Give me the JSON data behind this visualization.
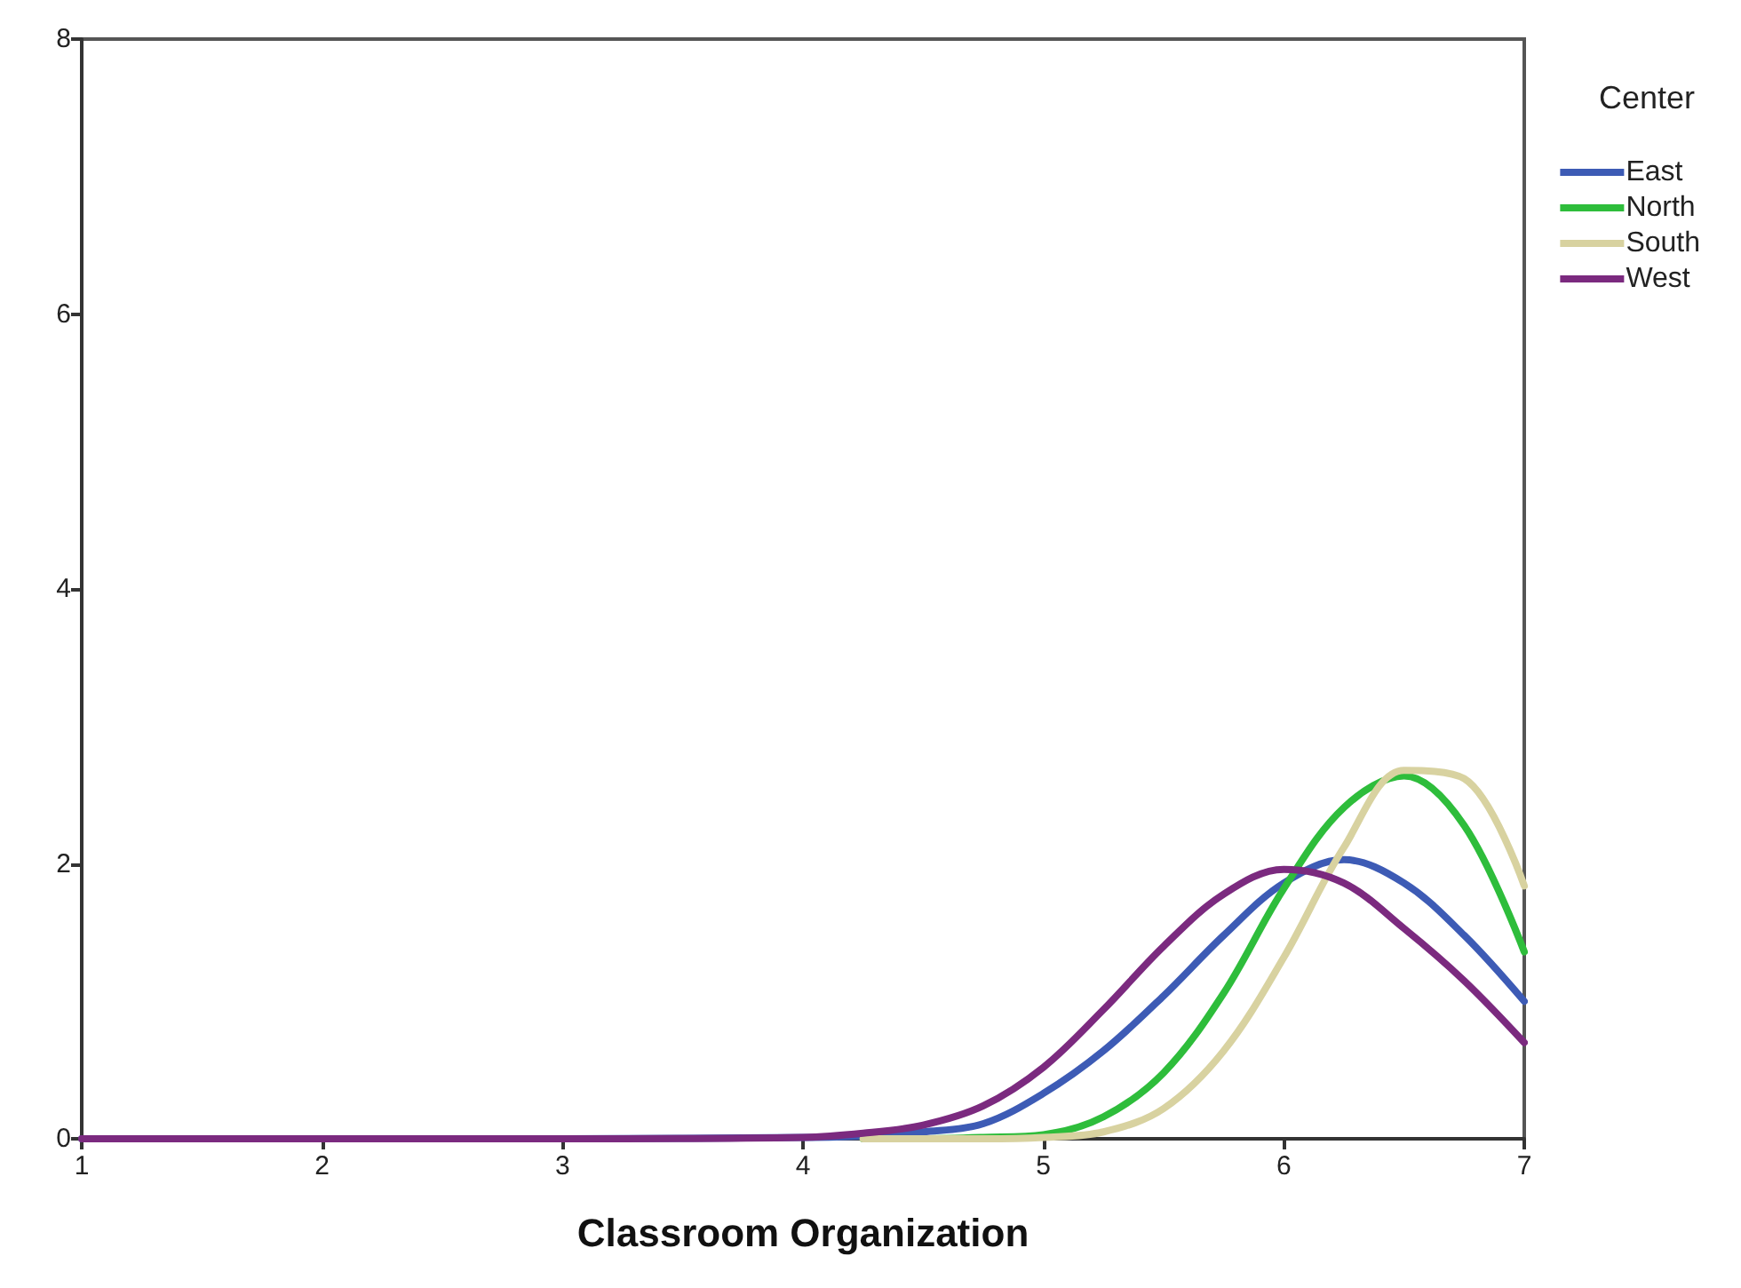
{
  "chart_data": {
    "type": "line",
    "xlabel": "Classroom Organization",
    "legend_title": "Center",
    "legend": "top right",
    "grid": false,
    "marker": "none",
    "line_style": "solid",
    "x": [
      1,
      2,
      3,
      4,
      4.25,
      4.5,
      4.75,
      5,
      5.25,
      5.5,
      5.75,
      6,
      6.25,
      6.5,
      6.75,
      7
    ],
    "xlim": [
      1,
      7
    ],
    "xticks": [
      1,
      2,
      3,
      4,
      5,
      6,
      7
    ],
    "ylim": [
      0,
      8
    ],
    "yticks": [
      0,
      2,
      4,
      6,
      8
    ],
    "series": [
      {
        "name": "East",
        "color": "#3d5bb5",
        "values": [
          0,
          0,
          0,
          0.01,
          0.02,
          0.05,
          0.11,
          0.33,
          0.64,
          1.04,
          1.48,
          1.86,
          2.03,
          1.86,
          1.48,
          1.0
        ]
      },
      {
        "name": "North",
        "color": "#2ebd3b",
        "values": [
          null,
          null,
          null,
          null,
          0,
          0,
          0.01,
          0.03,
          0.16,
          0.48,
          1.06,
          1.82,
          2.41,
          2.64,
          2.28,
          1.36
        ]
      },
      {
        "name": "South",
        "color": "#d8d2a0",
        "values": [
          null,
          null,
          null,
          null,
          0,
          0,
          0,
          0.01,
          0.05,
          0.22,
          0.64,
          1.32,
          2.12,
          2.68,
          2.62,
          1.84
        ]
      },
      {
        "name": "West",
        "color": "#7b2a7f",
        "values": [
          0,
          0,
          0,
          0.01,
          0.04,
          0.1,
          0.24,
          0.52,
          0.94,
          1.4,
          1.78,
          1.96,
          1.86,
          1.53,
          1.15,
          0.7
        ]
      }
    ]
  }
}
